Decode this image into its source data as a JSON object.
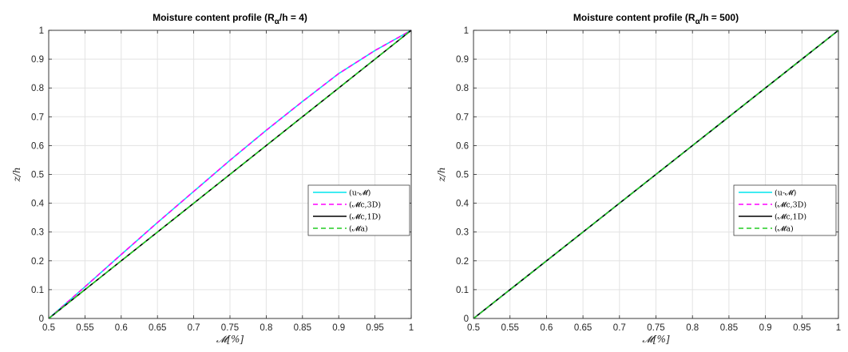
{
  "chart_data": [
    {
      "type": "line",
      "title_prefix": "Moisture content profile (R",
      "title_sub": "α",
      "title_suffix": "/h = 4)",
      "xlabel": "𝓜[%]",
      "ylabel": "z/h",
      "xlim": [
        0.5,
        1
      ],
      "ylim": [
        0,
        1
      ],
      "xticks": [
        "0.5",
        "0.55",
        "0.6",
        "0.65",
        "0.7",
        "0.75",
        "0.8",
        "0.85",
        "0.9",
        "0.95",
        "1"
      ],
      "yticks": [
        "0",
        "0.1",
        "0.2",
        "0.3",
        "0.4",
        "0.5",
        "0.6",
        "0.7",
        "0.8",
        "0.9",
        "1"
      ],
      "grid": true,
      "legend_position": "right",
      "series": [
        {
          "name": "(u-𝓜)",
          "color": "#00e5ee",
          "dash": "solid",
          "x": [
            0.5,
            0.55,
            0.6,
            0.65,
            0.7,
            0.75,
            0.8,
            0.85,
            0.9,
            0.95,
            1.0
          ],
          "y": [
            0,
            0.11,
            0.222,
            0.333,
            0.441,
            0.549,
            0.653,
            0.753,
            0.85,
            0.93,
            1.0
          ]
        },
        {
          "name": "(𝓜c,3D)",
          "color": "#ff00ff",
          "dash": "dashed",
          "x": [
            0.5,
            0.55,
            0.6,
            0.65,
            0.7,
            0.75,
            0.8,
            0.85,
            0.9,
            0.95,
            1.0
          ],
          "y": [
            0,
            0.11,
            0.222,
            0.333,
            0.441,
            0.549,
            0.653,
            0.753,
            0.85,
            0.93,
            1.0
          ]
        },
        {
          "name": "(𝓜c,1D)",
          "color": "#000000",
          "dash": "solid",
          "x": [
            0.5,
            0.55,
            0.6,
            0.65,
            0.7,
            0.75,
            0.8,
            0.85,
            0.9,
            0.95,
            1.0
          ],
          "y": [
            0,
            0.1,
            0.2,
            0.3,
            0.4,
            0.5,
            0.6,
            0.7,
            0.8,
            0.9,
            1.0
          ]
        },
        {
          "name": "(𝓜a)",
          "color": "#22cc22",
          "dash": "dashed",
          "x": [
            0.5,
            0.55,
            0.6,
            0.65,
            0.7,
            0.75,
            0.8,
            0.85,
            0.9,
            0.95,
            1.0
          ],
          "y": [
            0,
            0.1,
            0.2,
            0.3,
            0.4,
            0.5,
            0.6,
            0.7,
            0.8,
            0.9,
            1.0
          ]
        }
      ]
    },
    {
      "type": "line",
      "title_prefix": "Moisture content profile (R",
      "title_sub": "α",
      "title_suffix": "/h = 500)",
      "xlabel": "𝓜[%]",
      "ylabel": "z/h",
      "xlim": [
        0.5,
        1
      ],
      "ylim": [
        0,
        1
      ],
      "xticks": [
        "0.5",
        "0.55",
        "0.6",
        "0.65",
        "0.7",
        "0.75",
        "0.8",
        "0.85",
        "0.9",
        "0.95",
        "1"
      ],
      "yticks": [
        "0",
        "0.1",
        "0.2",
        "0.3",
        "0.4",
        "0.5",
        "0.6",
        "0.7",
        "0.8",
        "0.9",
        "1"
      ],
      "grid": true,
      "legend_position": "right",
      "series": [
        {
          "name": "(u-𝓜)",
          "color": "#00e5ee",
          "dash": "solid",
          "x": [
            0.5,
            1.0
          ],
          "y": [
            0,
            1.0
          ]
        },
        {
          "name": "(𝓜c,3D)",
          "color": "#ff00ff",
          "dash": "dashed",
          "x": [
            0.5,
            1.0
          ],
          "y": [
            0,
            1.0
          ]
        },
        {
          "name": "(𝓜c,1D)",
          "color": "#000000",
          "dash": "solid",
          "x": [
            0.5,
            1.0
          ],
          "y": [
            0,
            1.0
          ]
        },
        {
          "name": "(𝓜a)",
          "color": "#22cc22",
          "dash": "dashed",
          "x": [
            0.5,
            1.0
          ],
          "y": [
            0,
            1.0
          ]
        }
      ]
    }
  ]
}
